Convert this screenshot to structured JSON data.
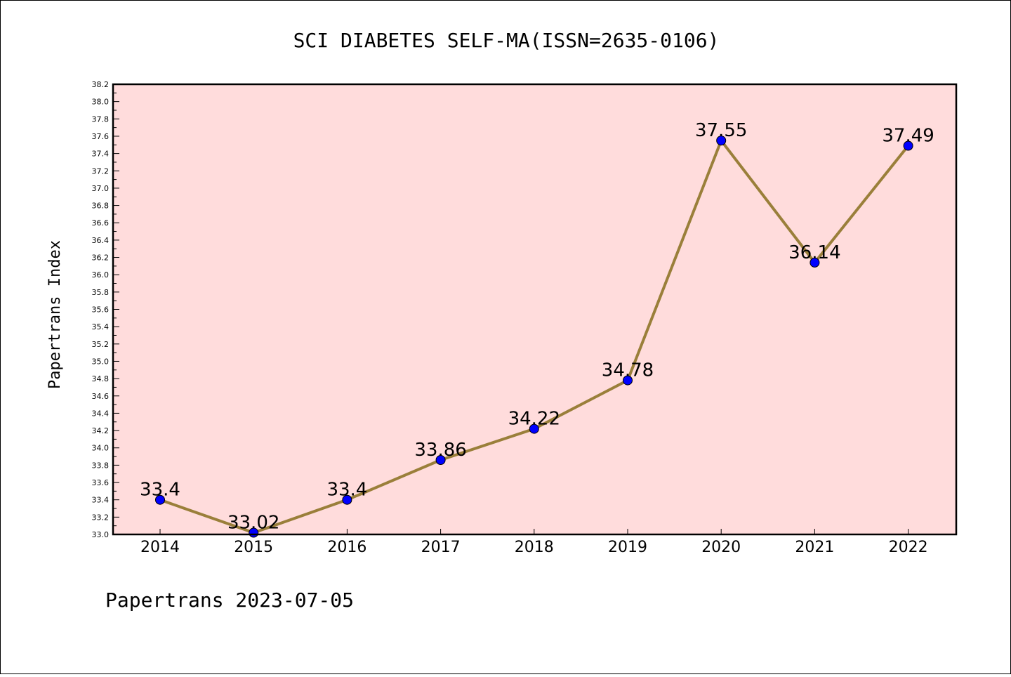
{
  "chart_data": {
    "type": "line",
    "title": "SCI DIABETES SELF-MA(ISSN=2635-0106)",
    "xlabel": "",
    "ylabel": "Papertrans Index",
    "categories": [
      "2014",
      "2015",
      "2016",
      "2017",
      "2018",
      "2019",
      "2020",
      "2021",
      "2022"
    ],
    "series": [
      {
        "values": [
          33.4,
          33.02,
          33.4,
          33.86,
          34.22,
          34.78,
          37.55,
          36.14,
          37.49
        ],
        "labels": [
          "33.4",
          "33.02",
          "33.4",
          "33.86",
          "34.22",
          "34.78",
          "37.55",
          "36.14",
          "37.49"
        ]
      }
    ],
    "ylim": [
      33.0,
      38.2
    ],
    "ytick_step": 0.2,
    "grid": false,
    "line_color": "#9a7f3a",
    "marker_color": "#0000ff",
    "plot_background": "#ffdcdc"
  },
  "footer": "Papertrans 2023-07-05"
}
